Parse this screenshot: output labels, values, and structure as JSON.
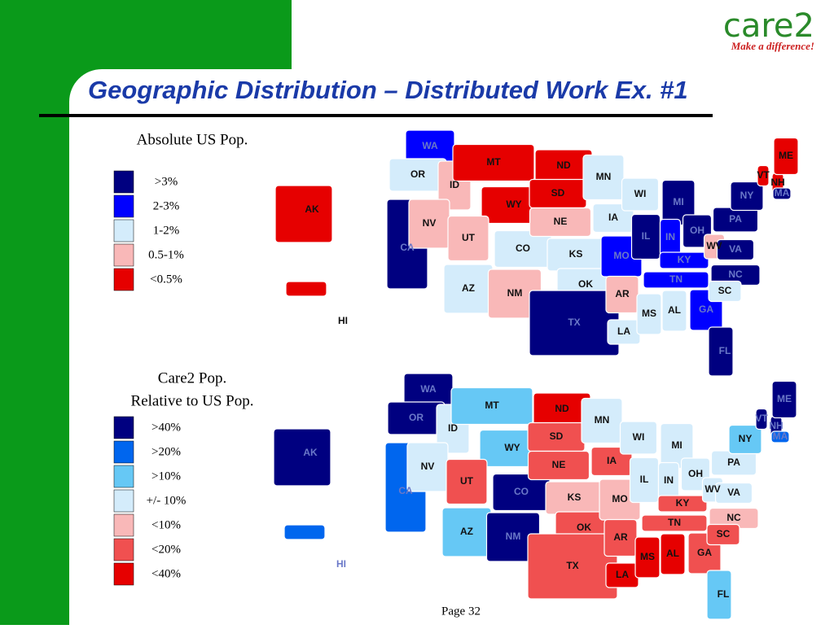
{
  "header": {
    "title": "Geographic Distribution – Distributed Work Ex. #1",
    "logo": "care2",
    "tagline": "Make a difference!"
  },
  "maps": [
    {
      "heading": [
        "Absolute US Pop."
      ],
      "legend": [
        {
          "label": ">3%",
          "color": "#000080"
        },
        {
          "label": "2-3%",
          "color": "#0000ff"
        },
        {
          "label": "1-2%",
          "color": "#d4ecfb"
        },
        {
          "label": "0.5-1%",
          "color": "#f9b8b8"
        },
        {
          "label": "<0.5%",
          "color": "#e60000"
        }
      ],
      "states": [
        {
          "label": "WA",
          "class": 1
        },
        {
          "label": "OR",
          "class": 2
        },
        {
          "label": "CA",
          "class": 0
        },
        {
          "label": "ID",
          "class": 3
        },
        {
          "label": "NV",
          "class": 3
        },
        {
          "label": "MT",
          "class": 4
        },
        {
          "label": "WY",
          "class": 4
        },
        {
          "label": "UT",
          "class": 3
        },
        {
          "label": "AZ",
          "class": 2
        },
        {
          "label": "CO",
          "class": 2
        },
        {
          "label": "NM",
          "class": 3
        },
        {
          "label": "ND",
          "class": 4
        },
        {
          "label": "SD",
          "class": 4
        },
        {
          "label": "NE",
          "class": 3
        },
        {
          "label": "KS",
          "class": 2
        },
        {
          "label": "OK",
          "class": 2
        },
        {
          "label": "TX",
          "class": 0
        },
        {
          "label": "MN",
          "class": 2
        },
        {
          "label": "IA",
          "class": 2
        },
        {
          "label": "MO",
          "class": 1
        },
        {
          "label": "AR",
          "class": 3
        },
        {
          "label": "LA",
          "class": 2
        },
        {
          "label": "WI",
          "class": 2
        },
        {
          "label": "IL",
          "class": 0
        },
        {
          "label": "MS",
          "class": 2
        },
        {
          "label": "MI",
          "class": 0
        },
        {
          "label": "IN",
          "class": 1
        },
        {
          "label": "KY",
          "class": 1
        },
        {
          "label": "TN",
          "class": 1
        },
        {
          "label": "AL",
          "class": 2
        },
        {
          "label": "GA",
          "class": 1
        },
        {
          "label": "FL",
          "class": 0
        },
        {
          "label": "OH",
          "class": 0
        },
        {
          "label": "WV",
          "class": 3
        },
        {
          "label": "VA",
          "class": 0
        },
        {
          "label": "NC",
          "class": 0
        },
        {
          "label": "SC",
          "class": 2
        },
        {
          "label": "PA",
          "class": 0
        },
        {
          "label": "NY",
          "class": 0
        },
        {
          "label": "VT",
          "class": 4
        },
        {
          "label": "NH",
          "class": 4
        },
        {
          "label": "ME",
          "class": 4
        },
        {
          "label": "MA",
          "class": 0
        },
        {
          "label": "AK",
          "class": 4
        },
        {
          "label": "HI",
          "class": 4
        }
      ]
    },
    {
      "heading": [
        "Care2 Pop.",
        "Relative to US Pop."
      ],
      "legend": [
        {
          "label": ">40%",
          "color": "#000080"
        },
        {
          "label": ">20%",
          "color": "#0066ee"
        },
        {
          "label": ">10%",
          "color": "#66c8f5"
        },
        {
          "label": "+/- 10%",
          "color": "#d4ecfb"
        },
        {
          "label": "<10%",
          "color": "#f9b8b8"
        },
        {
          "label": "<20%",
          "color": "#f05050"
        },
        {
          "label": "<40%",
          "color": "#e60000"
        }
      ],
      "states": [
        {
          "label": "WA",
          "class": 0
        },
        {
          "label": "OR",
          "class": 0
        },
        {
          "label": "CA",
          "class": 1
        },
        {
          "label": "ID",
          "class": 3
        },
        {
          "label": "NV",
          "class": 3
        },
        {
          "label": "MT",
          "class": 2
        },
        {
          "label": "WY",
          "class": 2
        },
        {
          "label": "UT",
          "class": 5
        },
        {
          "label": "AZ",
          "class": 2
        },
        {
          "label": "CO",
          "class": 0
        },
        {
          "label": "NM",
          "class": 0
        },
        {
          "label": "ND",
          "class": 6
        },
        {
          "label": "SD",
          "class": 5
        },
        {
          "label": "NE",
          "class": 5
        },
        {
          "label": "KS",
          "class": 4
        },
        {
          "label": "OK",
          "class": 5
        },
        {
          "label": "TX",
          "class": 5
        },
        {
          "label": "MN",
          "class": 3
        },
        {
          "label": "IA",
          "class": 5
        },
        {
          "label": "MO",
          "class": 4
        },
        {
          "label": "AR",
          "class": 5
        },
        {
          "label": "LA",
          "class": 6
        },
        {
          "label": "WI",
          "class": 3
        },
        {
          "label": "IL",
          "class": 3
        },
        {
          "label": "MS",
          "class": 6
        },
        {
          "label": "MI",
          "class": 3
        },
        {
          "label": "IN",
          "class": 3
        },
        {
          "label": "KY",
          "class": 5
        },
        {
          "label": "TN",
          "class": 5
        },
        {
          "label": "AL",
          "class": 6
        },
        {
          "label": "GA",
          "class": 5
        },
        {
          "label": "FL",
          "class": 2
        },
        {
          "label": "OH",
          "class": 3
        },
        {
          "label": "WV",
          "class": 3
        },
        {
          "label": "VA",
          "class": 3
        },
        {
          "label": "NC",
          "class": 4
        },
        {
          "label": "SC",
          "class": 5
        },
        {
          "label": "PA",
          "class": 3
        },
        {
          "label": "NY",
          "class": 2
        },
        {
          "label": "VT",
          "class": 0
        },
        {
          "label": "NH",
          "class": 0
        },
        {
          "label": "ME",
          "class": 0
        },
        {
          "label": "MA",
          "class": 1
        },
        {
          "label": "AK",
          "class": 0
        },
        {
          "label": "HI",
          "class": 1
        }
      ]
    }
  ],
  "footer": {
    "page": "Page 32"
  }
}
